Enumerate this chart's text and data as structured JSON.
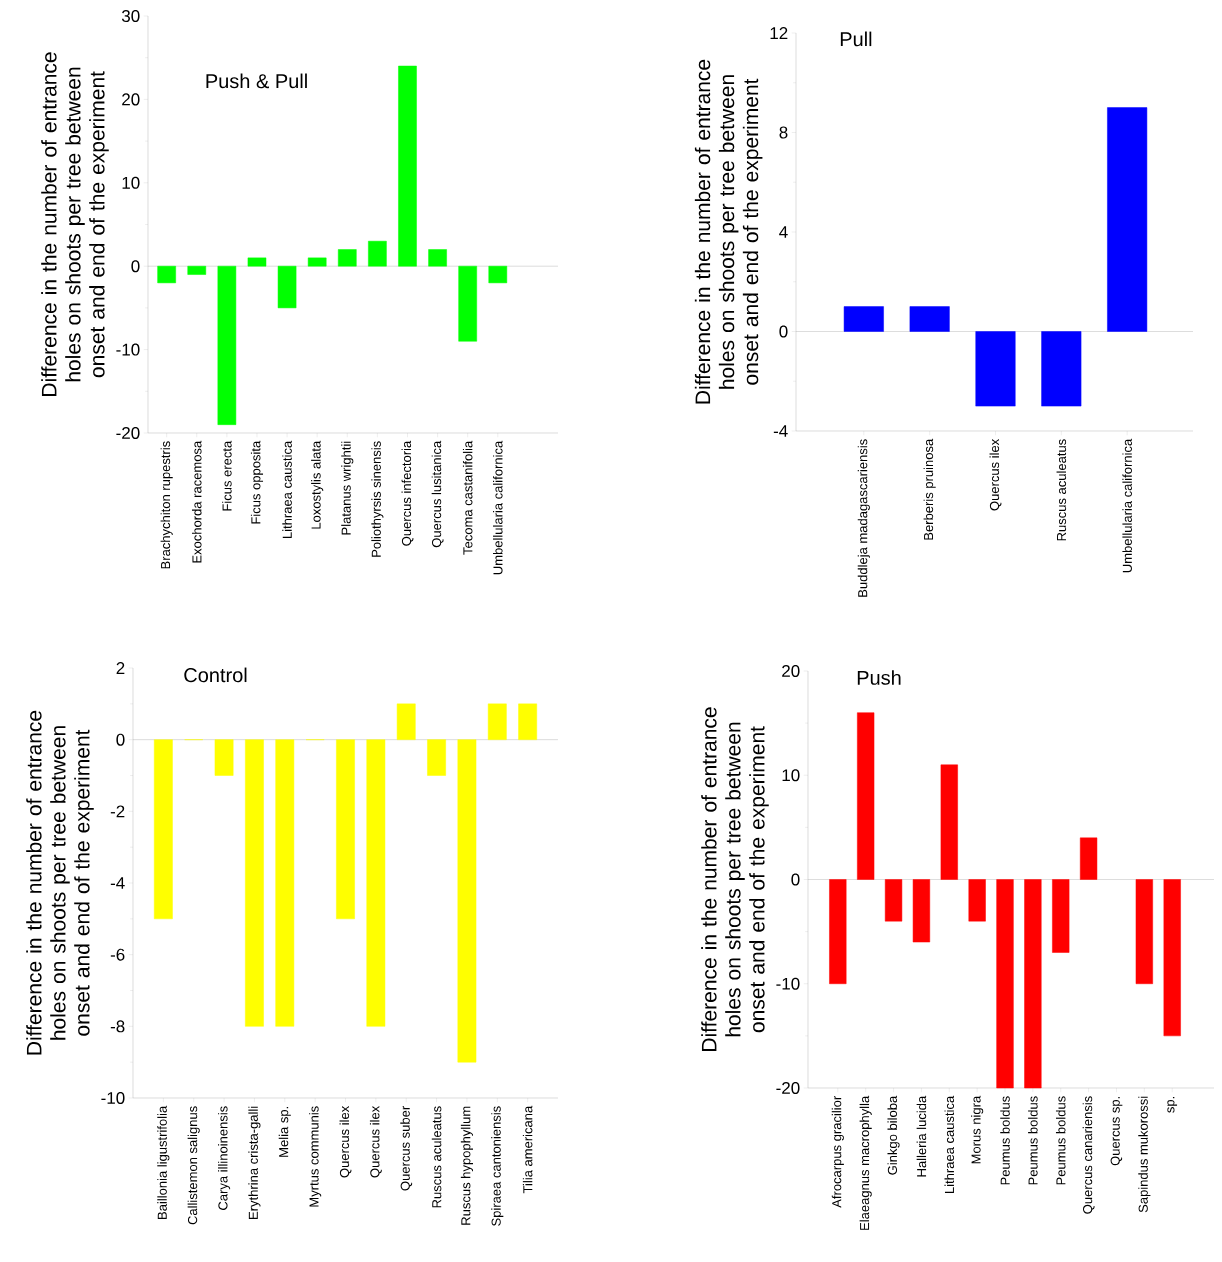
{
  "chart_data": [
    {
      "type": "bar",
      "title": "Push & Pull",
      "ylabel": "Difference in the number of entrance holes on shoots per tree between onset and end of the experiment",
      "color": "#00ff00",
      "categories": [
        "Brachychiton rupestris",
        "Exochorda racemosa",
        "Ficus erecta",
        "Ficus opposita",
        "Lithraea caustica",
        "Loxostylis  alata",
        "Platanus wrightii",
        "Poliothyrsis sinensis",
        "Quercus infectoria",
        "Quercus lusitanica",
        "Tecoma castanifolia",
        "Umbellularia californica"
      ],
      "values": [
        -2,
        -1,
        -19,
        1,
        -5,
        1,
        2,
        3,
        24,
        2,
        -9,
        -2
      ],
      "ylim": [
        -20,
        30
      ],
      "yticks": [
        -20,
        -10,
        0,
        10,
        20,
        30
      ]
    },
    {
      "type": "bar",
      "title": "Pull",
      "ylabel": "Difference in the number of entrance holes on shoots per tree between onset and end of the experiment",
      "color": "#0000ff",
      "categories": [
        "Buddleja madagascariensis",
        "Berberis pruinosa",
        "Quercus ilex",
        "Ruscus aculeatus",
        "Umbellularia californica"
      ],
      "values": [
        1,
        1,
        -3,
        -3,
        9
      ],
      "ylim": [
        -4,
        12
      ],
      "yticks": [
        -4,
        0,
        4,
        8,
        12
      ]
    },
    {
      "type": "bar",
      "title": "Control",
      "ylabel": "Difference in the number of entrance holes on shoots per tree between onset and end of the experiment",
      "color": "#ffff00",
      "categories": [
        "Baillonia ligustrifolia",
        "Callistemon salignus",
        "Carya illinoinensis",
        "Erythrina crista-galli",
        "Melia sp.",
        "Myrtus communis",
        "Quercus ilex",
        "Quercus ilex",
        "Quercus suber",
        "Ruscus aculeatus",
        "Ruscus hypophyllum",
        "Spiraea cantoniensis",
        "Tilia americana"
      ],
      "values": [
        -5,
        0,
        -1,
        -8,
        -8,
        0,
        -5,
        -8,
        1,
        -1,
        -9,
        1,
        1
      ],
      "ylim": [
        -10,
        2
      ],
      "yticks": [
        -10,
        -8,
        -6,
        -4,
        -2,
        0,
        2
      ]
    },
    {
      "type": "bar",
      "title": "Push",
      "ylabel": "Difference in the number of entrance holes on shoots per tree between onset and end of the experiment",
      "color": "#ff0000",
      "categories": [
        "Afrocarpus gracilior",
        "Elaeagnus macrophylla",
        "Ginkgo biloba",
        "Halleria lucida",
        "Lithraea caustica",
        "Morus nigra",
        "Peumus boldus",
        "Peumus boldus",
        "Peumus boldus",
        "Quercus canariensis",
        "Quercus sp.",
        "Sapindus mukorossi",
        "sp."
      ],
      "values": [
        -10,
        16,
        -4,
        -6,
        11,
        -4,
        -20,
        -20,
        -7,
        4,
        null,
        -10,
        -15
      ],
      "ylim": [
        -20,
        20
      ],
      "yticks": [
        -20,
        -10,
        0,
        10,
        20
      ]
    }
  ]
}
